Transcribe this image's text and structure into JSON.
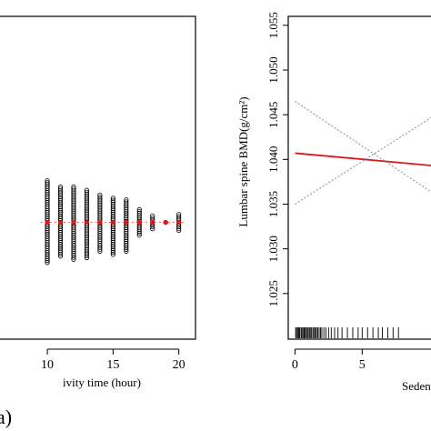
{
  "panel_label": "a)",
  "chart_data": [
    {
      "type": "scatter",
      "xlabel": "ivity time (hour)",
      "ylabel": "",
      "x_ticks": [
        10,
        15,
        20
      ],
      "xlim": [
        6.4,
        21.2
      ],
      "ylim": [
        0,
        1
      ],
      "points": [
        {
          "x": 10,
          "spread": [
            0.235,
            0.49
          ],
          "mean": 0.36
        },
        {
          "x": 11,
          "spread": [
            0.255,
            0.47
          ],
          "mean": 0.36
        },
        {
          "x": 12,
          "spread": [
            0.245,
            0.47
          ],
          "mean": 0.36
        },
        {
          "x": 13,
          "spread": [
            0.25,
            0.46
          ],
          "mean": 0.36
        },
        {
          "x": 14,
          "spread": [
            0.27,
            0.445
          ],
          "mean": 0.36
        },
        {
          "x": 15,
          "spread": [
            0.26,
            0.435
          ],
          "mean": 0.36
        },
        {
          "x": 16,
          "spread": [
            0.27,
            0.43
          ],
          "mean": 0.36
        },
        {
          "x": 17,
          "spread": [
            0.32,
            0.4
          ],
          "mean": 0.36
        },
        {
          "x": 18,
          "spread": [
            0.34,
            0.38
          ],
          "mean": 0.36
        },
        {
          "x": 19,
          "spread": [
            0.36,
            0.36
          ],
          "mean": 0.36
        },
        {
          "x": 20,
          "spread": [
            0.335,
            0.385
          ],
          "mean": 0.36
        }
      ]
    },
    {
      "type": "line",
      "xlabel": "Sedenta",
      "ylabel": "Lumbar spine BMD(g/cm²)",
      "x_ticks": [
        0,
        5
      ],
      "xlim": [
        -0.5,
        11
      ],
      "ylim": [
        1.02,
        1.056
      ],
      "y_ticks": [
        "1.025",
        "1.030",
        "1.035",
        "1.040",
        "1.045",
        "1.050",
        "1.055"
      ],
      "series": [
        {
          "role": "fit",
          "color": "#d91a1a",
          "x": [
            0,
            11
          ],
          "y": [
            1.0407,
            1.0392
          ]
        },
        {
          "role": "upper-ci",
          "color": "#8a8a8a",
          "x": [
            0,
            11
          ],
          "y": [
            1.0465,
            1.0355
          ]
        },
        {
          "role": "lower-ci",
          "color": "#8a8a8a",
          "x": [
            0,
            11
          ],
          "y": [
            1.035,
            1.0455
          ]
        }
      ],
      "rug": [
        0.05,
        0.12,
        0.2,
        0.28,
        0.35,
        0.45,
        0.52,
        0.6,
        0.68,
        0.75,
        0.85,
        0.92,
        1.0,
        1.1,
        1.18,
        1.25,
        1.35,
        1.45,
        1.52,
        1.6,
        1.7,
        1.8,
        1.9,
        2.0,
        2.15,
        2.3,
        2.5,
        2.7,
        2.95,
        3.2,
        3.5,
        3.9,
        4.3,
        4.7,
        5.0,
        5.4,
        5.8,
        6.2,
        6.5,
        6.9,
        7.3,
        7.7
      ]
    }
  ]
}
